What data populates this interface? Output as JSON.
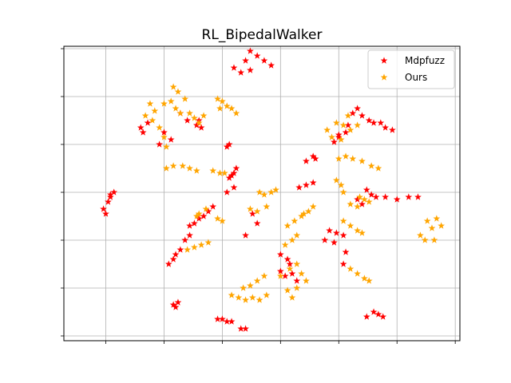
{
  "chart_data": {
    "type": "scatter",
    "title": "RL_BipedalWalker",
    "xlabel": "",
    "ylabel": "",
    "grid": true,
    "tick_labels_visible": false,
    "xlim": [
      -1.8,
      15.2
    ],
    "ylim": [
      -0.2,
      12.1
    ],
    "x_gridlines": [
      0,
      2.5,
      5,
      7.5,
      10,
      12.5,
      15
    ],
    "y_gridlines": [
      0,
      2,
      4,
      6,
      8,
      10,
      12
    ],
    "legend": {
      "position": "top-right",
      "entries": [
        "Mdpfuzz",
        "Ours"
      ]
    },
    "series": [
      {
        "name": "Mdpfuzz",
        "color": "#ff0000",
        "marker": "star",
        "points": [
          [
            -0.1,
            5.3
          ],
          [
            0.1,
            5.6
          ],
          [
            0.2,
            5.9
          ],
          [
            0.35,
            6.0
          ],
          [
            0.0,
            5.1
          ],
          [
            0.2,
            5.8
          ],
          [
            6.2,
            11.9
          ],
          [
            6.5,
            11.7
          ],
          [
            6.8,
            11.5
          ],
          [
            7.1,
            11.3
          ],
          [
            5.8,
            11.0
          ],
          [
            6.2,
            11.1
          ],
          [
            5.5,
            11.2
          ],
          [
            6.0,
            11.5
          ],
          [
            3.2,
            9.3
          ],
          [
            3.5,
            9.0
          ],
          [
            3.9,
            8.8
          ],
          [
            4.1,
            8.7
          ],
          [
            4.0,
            9.0
          ],
          [
            1.8,
            8.9
          ],
          [
            1.5,
            8.7
          ],
          [
            1.6,
            8.5
          ],
          [
            2.5,
            8.5
          ],
          [
            2.8,
            8.2
          ],
          [
            2.3,
            8.0
          ],
          [
            5.3,
            8.0
          ],
          [
            5.2,
            7.9
          ],
          [
            5.6,
            7.0
          ],
          [
            5.5,
            6.8
          ],
          [
            5.4,
            6.7
          ],
          [
            5.3,
            6.6
          ],
          [
            5.5,
            6.2
          ],
          [
            5.2,
            6.0
          ],
          [
            8.6,
            7.3
          ],
          [
            8.9,
            7.5
          ],
          [
            9.0,
            7.4
          ],
          [
            9.8,
            8.1
          ],
          [
            10.0,
            8.4
          ],
          [
            10.4,
            8.8
          ],
          [
            10.6,
            9.3
          ],
          [
            10.8,
            9.5
          ],
          [
            11.0,
            9.2
          ],
          [
            11.3,
            9.0
          ],
          [
            11.5,
            8.9
          ],
          [
            11.8,
            8.9
          ],
          [
            12.0,
            8.7
          ],
          [
            12.3,
            8.6
          ],
          [
            10.3,
            8.5
          ],
          [
            10.0,
            8.3
          ],
          [
            8.9,
            6.4
          ],
          [
            8.6,
            6.3
          ],
          [
            8.3,
            6.2
          ],
          [
            11.2,
            6.1
          ],
          [
            11.4,
            5.9
          ],
          [
            11.6,
            5.8
          ],
          [
            12.0,
            5.8
          ],
          [
            12.5,
            5.7
          ],
          [
            13.0,
            5.8
          ],
          [
            13.4,
            5.8
          ],
          [
            11.0,
            5.5
          ],
          [
            10.8,
            5.7
          ],
          [
            4.6,
            5.4
          ],
          [
            4.4,
            5.2
          ],
          [
            4.2,
            5.0
          ],
          [
            4.0,
            4.9
          ],
          [
            3.8,
            4.7
          ],
          [
            3.6,
            4.6
          ],
          [
            6.3,
            5.1
          ],
          [
            6.5,
            4.7
          ],
          [
            3.6,
            4.2
          ],
          [
            3.4,
            4.0
          ],
          [
            3.2,
            3.6
          ],
          [
            3.0,
            3.4
          ],
          [
            2.9,
            3.2
          ],
          [
            2.7,
            3.0
          ],
          [
            6.0,
            4.2
          ],
          [
            9.6,
            4.4
          ],
          [
            9.9,
            4.3
          ],
          [
            10.2,
            4.2
          ],
          [
            9.8,
            3.9
          ],
          [
            9.4,
            4.0
          ],
          [
            10.2,
            3.0
          ],
          [
            10.3,
            3.5
          ],
          [
            7.5,
            3.4
          ],
          [
            7.8,
            3.2
          ],
          [
            7.9,
            3.0
          ],
          [
            8.0,
            2.6
          ],
          [
            8.2,
            2.3
          ],
          [
            7.5,
            2.7
          ],
          [
            7.7,
            2.5
          ],
          [
            2.9,
            1.3
          ],
          [
            3.1,
            1.4
          ],
          [
            3.0,
            1.2
          ],
          [
            5.0,
            0.7
          ],
          [
            5.2,
            0.6
          ],
          [
            5.4,
            0.6
          ],
          [
            4.8,
            0.7
          ],
          [
            5.8,
            0.3
          ],
          [
            6.0,
            0.3
          ],
          [
            11.2,
            0.8
          ],
          [
            11.5,
            1.0
          ],
          [
            11.7,
            0.9
          ],
          [
            11.9,
            0.8
          ]
        ]
      },
      {
        "name": "Ours",
        "color": "#ffa500",
        "marker": "star",
        "points": [
          [
            2.9,
            10.4
          ],
          [
            3.1,
            10.2
          ],
          [
            3.4,
            9.9
          ],
          [
            2.5,
            9.7
          ],
          [
            2.8,
            9.8
          ],
          [
            3.0,
            9.5
          ],
          [
            3.2,
            9.3
          ],
          [
            1.9,
            9.7
          ],
          [
            2.1,
            9.4
          ],
          [
            1.7,
            9.2
          ],
          [
            2.0,
            9.0
          ],
          [
            2.3,
            8.7
          ],
          [
            2.5,
            8.3
          ],
          [
            2.6,
            7.9
          ],
          [
            3.6,
            9.3
          ],
          [
            3.8,
            9.1
          ],
          [
            4.0,
            8.9
          ],
          [
            4.2,
            9.2
          ],
          [
            4.8,
            9.9
          ],
          [
            5.0,
            9.8
          ],
          [
            5.2,
            9.6
          ],
          [
            5.4,
            9.5
          ],
          [
            5.6,
            9.3
          ],
          [
            4.9,
            9.5
          ],
          [
            2.6,
            7.0
          ],
          [
            2.9,
            7.1
          ],
          [
            3.3,
            7.1
          ],
          [
            3.6,
            7.0
          ],
          [
            3.9,
            6.9
          ],
          [
            4.6,
            6.9
          ],
          [
            4.9,
            6.8
          ],
          [
            5.1,
            6.8
          ],
          [
            9.9,
            8.9
          ],
          [
            10.2,
            8.8
          ],
          [
            10.5,
            8.6
          ],
          [
            10.8,
            8.8
          ],
          [
            10.4,
            9.2
          ],
          [
            9.5,
            8.6
          ],
          [
            9.7,
            8.3
          ],
          [
            10.1,
            8.2
          ],
          [
            10.3,
            7.5
          ],
          [
            10.6,
            7.4
          ],
          [
            11.0,
            7.3
          ],
          [
            11.4,
            7.1
          ],
          [
            11.7,
            7.0
          ],
          [
            10.0,
            7.4
          ],
          [
            9.9,
            6.5
          ],
          [
            10.1,
            6.3
          ],
          [
            10.2,
            6.0
          ],
          [
            6.6,
            6.0
          ],
          [
            6.8,
            5.9
          ],
          [
            7.1,
            6.0
          ],
          [
            7.3,
            6.1
          ],
          [
            6.2,
            5.3
          ],
          [
            6.5,
            5.2
          ],
          [
            6.9,
            5.4
          ],
          [
            4.0,
            5.1
          ],
          [
            4.3,
            5.3
          ],
          [
            3.9,
            5.0
          ],
          [
            4.8,
            4.9
          ],
          [
            5.0,
            4.8
          ],
          [
            3.5,
            3.6
          ],
          [
            3.8,
            3.7
          ],
          [
            4.1,
            3.8
          ],
          [
            4.4,
            3.9
          ],
          [
            7.8,
            4.6
          ],
          [
            8.1,
            4.8
          ],
          [
            8.4,
            5.0
          ],
          [
            8.7,
            5.2
          ],
          [
            8.9,
            5.4
          ],
          [
            8.5,
            5.1
          ],
          [
            8.2,
            4.2
          ],
          [
            8.0,
            4.0
          ],
          [
            7.7,
            3.8
          ],
          [
            10.5,
            5.5
          ],
          [
            10.8,
            5.4
          ],
          [
            10.9,
            5.8
          ],
          [
            11.1,
            5.7
          ],
          [
            11.3,
            5.6
          ],
          [
            10.2,
            4.8
          ],
          [
            10.5,
            4.6
          ],
          [
            10.8,
            4.4
          ],
          [
            11.0,
            4.3
          ],
          [
            7.5,
            2.5
          ],
          [
            7.9,
            2.8
          ],
          [
            8.2,
            3.0
          ],
          [
            8.4,
            2.6
          ],
          [
            8.6,
            2.3
          ],
          [
            8.2,
            2.0
          ],
          [
            7.8,
            1.9
          ],
          [
            8.0,
            1.6
          ],
          [
            10.5,
            2.8
          ],
          [
            10.8,
            2.6
          ],
          [
            11.1,
            2.4
          ],
          [
            11.3,
            2.3
          ],
          [
            6.2,
            2.1
          ],
          [
            6.5,
            2.3
          ],
          [
            6.8,
            2.5
          ],
          [
            5.9,
            2.0
          ],
          [
            5.4,
            1.7
          ],
          [
            5.7,
            1.6
          ],
          [
            6.0,
            1.5
          ],
          [
            6.3,
            1.6
          ],
          [
            6.6,
            1.5
          ],
          [
            6.9,
            1.7
          ],
          [
            13.8,
            4.8
          ],
          [
            14.2,
            4.9
          ],
          [
            14.4,
            4.6
          ],
          [
            14.0,
            4.5
          ],
          [
            13.5,
            4.2
          ],
          [
            13.7,
            4.0
          ],
          [
            14.1,
            4.0
          ]
        ]
      }
    ]
  }
}
